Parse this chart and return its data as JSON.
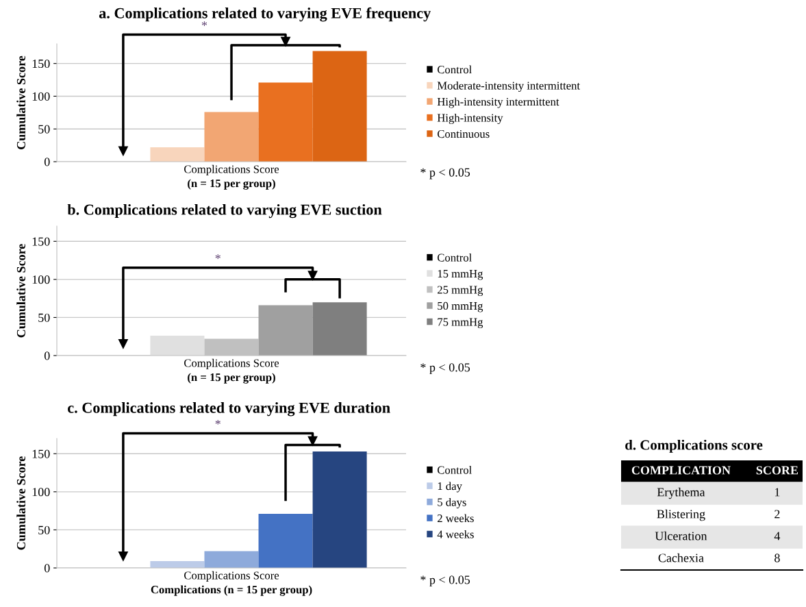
{
  "chart_data": [
    {
      "type": "bar",
      "title": "a. Complications related to varying EVE frequency",
      "xlabel": "(n = 15 per group)",
      "ylabel": "Cumulative Score",
      "categories": [
        "Complications Score"
      ],
      "ylim": [
        0,
        180
      ],
      "yticks": [
        0,
        50,
        100,
        150
      ],
      "grid": "y",
      "legend": "right",
      "annotations": [
        "*",
        "* p < 0.05"
      ],
      "series": [
        {
          "name": "Control",
          "color": "#000000",
          "values": [
            0
          ]
        },
        {
          "name": "Moderate-intensity intermittent",
          "color": "#f8d5bc",
          "values": [
            22
          ]
        },
        {
          "name": "High-intensity intermittent",
          "color": "#f2a673",
          "values": [
            76
          ]
        },
        {
          "name": "High-intensity",
          "color": "#e97020",
          "values": [
            121
          ]
        },
        {
          "name": "Continuous",
          "color": "#dc6514",
          "values": [
            169
          ]
        }
      ]
    },
    {
      "type": "bar",
      "title": "b. Complications related to varying EVE suction",
      "xlabel": "(n = 15 per group)",
      "ylabel": "Cumulative Score",
      "categories": [
        "Complications Score"
      ],
      "ylim": [
        0,
        170
      ],
      "yticks": [
        0,
        50,
        100,
        150
      ],
      "grid": "y",
      "legend": "right",
      "annotations": [
        "*",
        "* p < 0.05"
      ],
      "series": [
        {
          "name": "Control",
          "color": "#000000",
          "values": [
            0
          ]
        },
        {
          "name": "15 mmHg",
          "color": "#e0e0e0",
          "values": [
            26
          ]
        },
        {
          "name": "25 mmHg",
          "color": "#c0c0c0",
          "values": [
            22
          ]
        },
        {
          "name": "50 mmHg",
          "color": "#a0a0a0",
          "values": [
            66
          ]
        },
        {
          "name": "75 mmHg",
          "color": "#7f7f7f",
          "values": [
            70
          ]
        }
      ]
    },
    {
      "type": "bar",
      "title": "c. Complications related to varying EVE duration",
      "xlabel": "Complications (n = 15 per group)",
      "ylabel": "Cumulative Score",
      "categories": [
        "Complications Score"
      ],
      "ylim": [
        0,
        170
      ],
      "yticks": [
        0,
        50,
        100,
        150
      ],
      "grid": "y",
      "legend": "right",
      "annotations": [
        "*",
        "* p < 0.05"
      ],
      "series": [
        {
          "name": "Control",
          "color": "#000000",
          "values": [
            0
          ]
        },
        {
          "name": "1 day",
          "color": "#bccbe8",
          "values": [
            9
          ]
        },
        {
          "name": "5 days",
          "color": "#8eaadb",
          "values": [
            22
          ]
        },
        {
          "name": "2 weeks",
          "color": "#4472c4",
          "values": [
            71
          ]
        },
        {
          "name": "4 weeks",
          "color": "#264580",
          "values": [
            153
          ]
        }
      ]
    },
    {
      "type": "other",
      "title": "d. Complications score",
      "xlabel": "COMPLICATION",
      "ylabel": "SCORE",
      "categories": [
        "Erythema",
        "Blistering",
        "Ulceration",
        "Cachexia"
      ],
      "values": [
        1,
        2,
        4,
        8
      ],
      "data_labels": true
    }
  ]
}
